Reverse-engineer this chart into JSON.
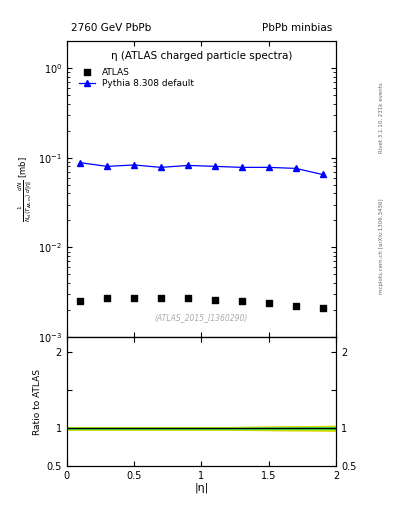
{
  "title_left": "2760 GeV PbPb",
  "title_right": "PbPb minbias",
  "plot_title": "η (ATLAS charged particle spectra)",
  "right_label_top": "Rivet 3.1.10, 231k events",
  "right_label_bottom": "mcplots.cern.ch [arXiv:1306.3436]",
  "watermark": "(ATLAS_2015_I1360290)",
  "xlabel": "|η|",
  "ylabel_line1": "dN",
  "ylabel_ratio": "Ratio to ATLAS",
  "xlim": [
    0,
    2
  ],
  "ylim_main": [
    0.001,
    2.0
  ],
  "ylim_ratio": [
    0.5,
    2.2
  ],
  "atlas_eta": [
    0.1,
    0.3,
    0.5,
    0.7,
    0.9,
    1.1,
    1.3,
    1.5,
    1.7,
    1.9
  ],
  "atlas_y": [
    0.0025,
    0.0027,
    0.0027,
    0.0027,
    0.0027,
    0.0026,
    0.0025,
    0.0024,
    0.0022,
    0.0021
  ],
  "pythia_eta": [
    0.1,
    0.3,
    0.5,
    0.7,
    0.9,
    1.1,
    1.3,
    1.5,
    1.7,
    1.9
  ],
  "pythia_y": [
    0.088,
    0.08,
    0.083,
    0.078,
    0.082,
    0.08,
    0.078,
    0.078,
    0.076,
    0.065
  ],
  "ratio_eta": [
    0.0,
    0.2,
    0.4,
    0.6,
    0.8,
    1.0,
    1.2,
    1.4,
    1.6,
    1.8,
    2.0
  ],
  "ratio_green_lo": [
    0.988,
    0.988,
    0.988,
    0.988,
    0.988,
    0.988,
    0.988,
    0.988,
    0.988,
    0.988,
    0.988
  ],
  "ratio_green_hi": [
    1.003,
    1.003,
    1.003,
    1.003,
    1.003,
    1.003,
    1.003,
    1.008,
    1.01,
    1.012,
    1.012
  ],
  "ratio_yellow_lo": [
    0.978,
    0.978,
    0.978,
    0.978,
    0.978,
    0.978,
    0.978,
    0.975,
    0.97,
    0.968,
    0.965
  ],
  "ratio_yellow_hi": [
    1.012,
    1.012,
    1.012,
    1.012,
    1.012,
    1.012,
    1.012,
    1.018,
    1.022,
    1.025,
    1.03
  ],
  "ratio_line": 1.0,
  "atlas_color": "black",
  "pythia_color": "blue",
  "green_color": "#44cc44",
  "yellow_color": "#dddd00",
  "atlas_marker": "s",
  "pythia_marker": "^",
  "legend_atlas": "ATLAS",
  "legend_pythia": "Pythia 8.308 default"
}
